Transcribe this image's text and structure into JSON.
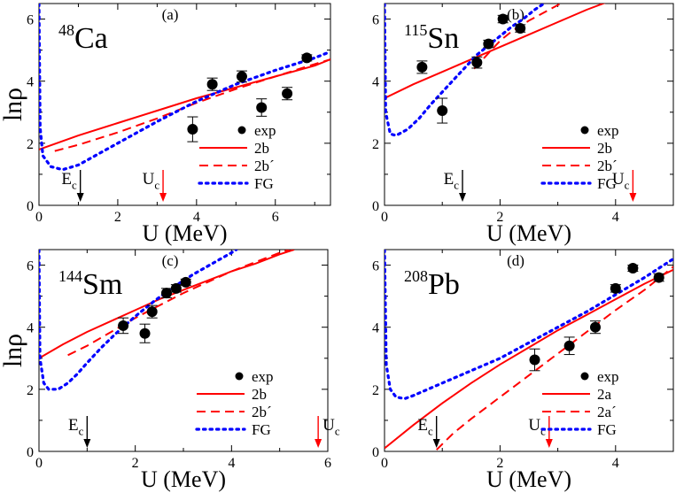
{
  "figure": {
    "ylabel": "lnρ",
    "xlabel": "U (MeV)"
  },
  "colors": {
    "model": "#ff0000",
    "fg": "#0000ff",
    "exp": "#000000",
    "arrow_ec": "#000000",
    "arrow_uc": "#ff0000"
  },
  "chart_data": [
    {
      "type": "line",
      "panel": "(a)",
      "nucleus_mass": "48",
      "nucleus_symbol": "Ca",
      "xlim": [
        0,
        7.4
      ],
      "ylim": [
        0,
        6.5
      ],
      "xticks": [
        0,
        2,
        4,
        6
      ],
      "yticks": [
        0,
        2,
        4,
        6
      ],
      "show_xlabel": true,
      "show_ylabel": true,
      "legend": {
        "position": "bottom-right",
        "labels": [
          "exp",
          "2b",
          "2b´",
          "FG"
        ]
      },
      "markers": [
        {
          "label": "E",
          "sub": "c",
          "x": 1.05,
          "color": "black"
        },
        {
          "label": "U",
          "sub": "c",
          "x": 3.15,
          "color": "red"
        }
      ],
      "exp": [
        {
          "x": 3.9,
          "y": 2.45,
          "err": 0.4
        },
        {
          "x": 4.4,
          "y": 3.9,
          "err": 0.2
        },
        {
          "x": 5.15,
          "y": 4.15,
          "err": 0.18
        },
        {
          "x": 5.65,
          "y": 3.15,
          "err": 0.28
        },
        {
          "x": 6.3,
          "y": 3.6,
          "err": 0.2
        },
        {
          "x": 6.8,
          "y": 4.75,
          "err": 0.1
        }
      ],
      "series": [
        {
          "name": "2b",
          "style": "solid",
          "x": [
            0,
            1,
            2,
            3,
            4,
            5,
            6,
            7,
            7.4
          ],
          "y": [
            1.8,
            2.25,
            2.65,
            3.05,
            3.45,
            3.8,
            4.15,
            4.5,
            4.7
          ]
        },
        {
          "name": "2b´",
          "style": "dashed",
          "x": [
            0.4,
            1,
            2,
            3,
            4,
            5,
            6,
            7,
            7.4
          ],
          "y": [
            1.75,
            1.95,
            2.35,
            2.8,
            3.3,
            3.75,
            4.15,
            4.55,
            4.7
          ]
        },
        {
          "name": "FG",
          "style": "dotted",
          "x": [
            0,
            0.03,
            0.1,
            0.3,
            0.6,
            1,
            1.5,
            2,
            3,
            4,
            5,
            6,
            7,
            7.3
          ],
          "y": [
            6.5,
            2.5,
            1.6,
            1.25,
            1.15,
            1.3,
            1.65,
            2.0,
            2.7,
            3.35,
            3.9,
            4.35,
            4.75,
            4.9
          ]
        }
      ]
    },
    {
      "type": "line",
      "panel": "(b)",
      "nucleus_mass": "115",
      "nucleus_symbol": "Sn",
      "xlim": [
        0,
        5
      ],
      "ylim": [
        0,
        6.5
      ],
      "xticks": [
        0,
        2,
        4
      ],
      "yticks": [
        0,
        2,
        4,
        6
      ],
      "show_xlabel": true,
      "show_ylabel": false,
      "legend": {
        "position": "bottom-right",
        "labels": [
          "exp",
          "2b",
          "2b´",
          "FG"
        ]
      },
      "markers": [
        {
          "label": "E",
          "sub": "c",
          "x": 1.35,
          "color": "black"
        },
        {
          "label": "U",
          "sub": "c",
          "x": 4.3,
          "color": "red"
        }
      ],
      "exp": [
        {
          "x": 0.65,
          "y": 4.45,
          "err": 0.2
        },
        {
          "x": 1.0,
          "y": 3.05,
          "err": 0.4
        },
        {
          "x": 1.6,
          "y": 4.6,
          "err": 0.18
        },
        {
          "x": 1.8,
          "y": 5.2,
          "err": 0.12
        },
        {
          "x": 2.05,
          "y": 6.0,
          "err": 0.12
        },
        {
          "x": 2.35,
          "y": 5.7,
          "err": 0.12
        }
      ],
      "series": [
        {
          "name": "2b",
          "style": "solid",
          "x": [
            0,
            0.5,
            1,
            1.5,
            2,
            2.5,
            3,
            3.5,
            4,
            4.2
          ],
          "y": [
            3.45,
            3.9,
            4.3,
            4.7,
            5.1,
            5.5,
            5.9,
            6.3,
            6.65,
            6.8
          ]
        },
        {
          "name": "2b´",
          "style": "dashed",
          "x": [
            1.55,
            1.8,
            2.0,
            2.2,
            2.5,
            2.8,
            3.1
          ],
          "y": [
            4.4,
            4.9,
            5.3,
            5.6,
            5.95,
            6.25,
            6.55
          ]
        },
        {
          "name": "FG",
          "style": "dotted",
          "x": [
            0,
            0.02,
            0.1,
            0.2,
            0.4,
            0.6,
            0.8,
            1.0,
            1.2,
            1.4,
            1.6,
            1.8,
            2.0,
            2.2,
            2.4,
            2.6,
            2.8
          ],
          "y": [
            6.5,
            3.0,
            2.3,
            2.25,
            2.45,
            2.8,
            3.25,
            3.65,
            4.05,
            4.45,
            4.85,
            5.15,
            5.45,
            5.75,
            6.0,
            6.3,
            6.55
          ]
        }
      ]
    },
    {
      "type": "line",
      "panel": "(c)",
      "nucleus_mass": "144",
      "nucleus_symbol": "Sm",
      "xlim": [
        0,
        6
      ],
      "ylim": [
        0,
        6.5
      ],
      "xticks": [
        0,
        2,
        4,
        6
      ],
      "yticks": [
        0,
        2,
        4,
        6
      ],
      "show_xlabel": true,
      "show_ylabel": true,
      "legend": {
        "position": "bottom-right",
        "labels": [
          "exp",
          "2b",
          "2b´",
          "FG"
        ]
      },
      "markers": [
        {
          "label": "E",
          "sub": "c",
          "x": 1.0,
          "color": "black"
        },
        {
          "label": "U",
          "sub": "c",
          "x": 5.8,
          "color": "red"
        }
      ],
      "exp": [
        {
          "x": 1.75,
          "y": 4.05,
          "err": 0.25
        },
        {
          "x": 2.2,
          "y": 3.8,
          "err": 0.3
        },
        {
          "x": 2.35,
          "y": 4.5,
          "err": 0.2
        },
        {
          "x": 2.65,
          "y": 5.1,
          "err": 0.15
        },
        {
          "x": 2.85,
          "y": 5.25,
          "err": 0.12
        },
        {
          "x": 3.05,
          "y": 5.45,
          "err": 0.1
        }
      ],
      "series": [
        {
          "name": "2b",
          "style": "solid",
          "x": [
            0,
            0.5,
            1,
            1.5,
            2,
            2.5,
            3,
            3.5,
            4,
            4.5,
            5,
            5.3
          ],
          "y": [
            3.0,
            3.45,
            3.85,
            4.2,
            4.55,
            4.9,
            5.2,
            5.5,
            5.8,
            6.05,
            6.35,
            6.5
          ]
        },
        {
          "name": "2b´",
          "style": "dashed",
          "x": [
            0.6,
            1,
            1.5,
            2,
            2.5,
            3,
            3.5,
            4,
            4.5,
            5,
            5.2
          ],
          "y": [
            3.1,
            3.4,
            3.85,
            4.3,
            4.7,
            5.1,
            5.45,
            5.8,
            6.1,
            6.4,
            6.5
          ]
        },
        {
          "name": "FG",
          "style": "dotted",
          "x": [
            0,
            0.02,
            0.1,
            0.2,
            0.4,
            0.6,
            0.8,
            1.0,
            1.3,
            1.6,
            2.0,
            2.4,
            2.8,
            3.2,
            3.6,
            4.0,
            4.1
          ],
          "y": [
            6.5,
            3.0,
            2.2,
            2.0,
            2.0,
            2.2,
            2.5,
            2.85,
            3.35,
            3.8,
            4.35,
            4.85,
            5.3,
            5.7,
            6.05,
            6.4,
            6.5
          ]
        }
      ]
    },
    {
      "type": "line",
      "panel": "(d)",
      "nucleus_mass": "208",
      "nucleus_symbol": "Pb",
      "xlim": [
        0,
        5
      ],
      "ylim": [
        0,
        6.5
      ],
      "xticks": [
        0,
        2,
        4
      ],
      "yticks": [
        0,
        2,
        4,
        6
      ],
      "show_xlabel": true,
      "show_ylabel": false,
      "legend": {
        "position": "bottom-right",
        "labels": [
          "exp",
          "2a",
          "2a´",
          "FG"
        ]
      },
      "markers": [
        {
          "label": "E",
          "sub": "c",
          "x": 0.9,
          "color": "black"
        },
        {
          "label": "U",
          "sub": "c",
          "x": 2.85,
          "color": "red"
        }
      ],
      "exp": [
        {
          "x": 2.6,
          "y": 2.95,
          "err": 0.35
        },
        {
          "x": 3.2,
          "y": 3.4,
          "err": 0.28
        },
        {
          "x": 3.65,
          "y": 4.0,
          "err": 0.2
        },
        {
          "x": 4.0,
          "y": 5.25,
          "err": 0.12
        },
        {
          "x": 4.3,
          "y": 5.9,
          "err": 0.1
        },
        {
          "x": 4.75,
          "y": 5.6,
          "err": 0.12
        }
      ],
      "series": [
        {
          "name": "2a",
          "style": "solid",
          "x": [
            0,
            0.5,
            1,
            1.5,
            2,
            2.5,
            3,
            3.5,
            4,
            4.5,
            5
          ],
          "y": [
            0.1,
            0.85,
            1.55,
            2.2,
            2.8,
            3.35,
            3.9,
            4.4,
            4.9,
            5.4,
            5.85
          ]
        },
        {
          "name": "2a´",
          "style": "dashed",
          "x": [
            0.9,
            1.2,
            1.5,
            2,
            2.5,
            3,
            3.5,
            4,
            4.5,
            5
          ],
          "y": [
            0.05,
            0.6,
            1.05,
            1.75,
            2.45,
            3.15,
            3.85,
            4.55,
            5.2,
            5.95
          ]
        },
        {
          "name": "FG",
          "style": "dotted",
          "x": [
            0,
            0.03,
            0.1,
            0.2,
            0.35,
            0.5,
            1,
            1.5,
            2,
            2.5,
            3,
            3.5,
            4,
            4.5,
            5
          ],
          "y": [
            6.5,
            2.8,
            2.0,
            1.75,
            1.7,
            1.8,
            2.2,
            2.6,
            3.0,
            3.5,
            4.0,
            4.5,
            5.05,
            5.6,
            6.2
          ]
        }
      ]
    }
  ]
}
